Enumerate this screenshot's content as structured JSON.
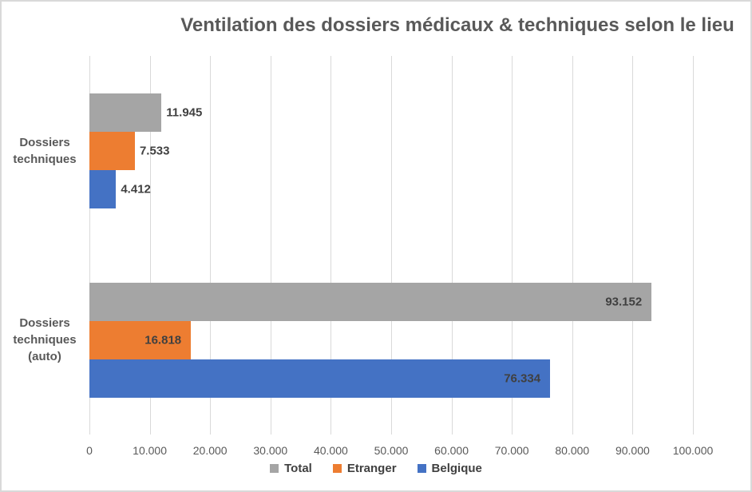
{
  "chart_data": {
    "type": "bar",
    "orientation": "horizontal",
    "title": "Ventilation des dossiers médicaux & techniques selon le lieu",
    "categories": [
      "Dossiers techniques",
      "Dossiers techniques (auto)"
    ],
    "series": [
      {
        "name": "Total",
        "color": "#A5A5A5",
        "values": [
          11945,
          93152
        ],
        "labels": [
          "11.945",
          "93.152"
        ]
      },
      {
        "name": "Etranger",
        "color": "#ED7D31",
        "values": [
          7533,
          16818
        ],
        "labels": [
          "7.533",
          "16.818"
        ]
      },
      {
        "name": "Belgique",
        "color": "#4472C4",
        "values": [
          4412,
          76334
        ],
        "labels": [
          "4.412",
          "76.334"
        ]
      }
    ],
    "x_axis": {
      "min": 0,
      "max": 100000,
      "tick_step": 10000,
      "tick_labels": [
        "0",
        "10.000",
        "20.000",
        "30.000",
        "40.000",
        "50.000",
        "60.000",
        "70.000",
        "80.000",
        "90.000",
        "100.000"
      ]
    },
    "data_label_placement_by_category": [
      "outside",
      "inside"
    ],
    "legend": {
      "position": "bottom",
      "entries": [
        "Total",
        "Etranger",
        "Belgique"
      ]
    },
    "grid": "vertical",
    "colors": {
      "title_text": "#595959",
      "axis_text": "#595959",
      "data_label_text": "#404040",
      "gridline": "#D9D9D9",
      "border": "#D9D9D9",
      "background": "#FFFFFF"
    }
  }
}
